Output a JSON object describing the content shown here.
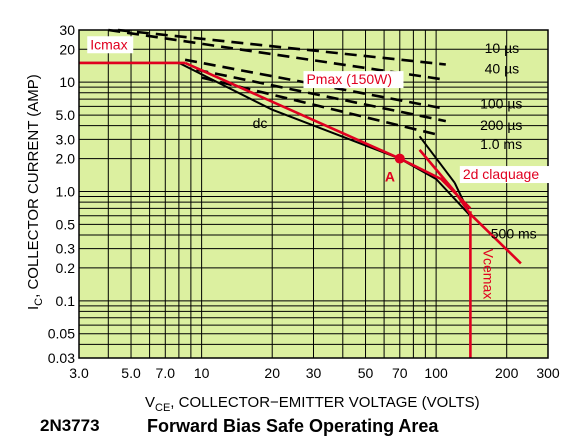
{
  "chart_data": {
    "type": "line",
    "title": "Forward Bias Safe Operating Area",
    "part_number": "2N3773",
    "xlabel": "V",
    "xlabel_sub": "CE",
    "xlabel_rest": ", COLLECTOR−EMITTER VOLTAGE (VOLTS)",
    "ylabel": "I",
    "ylabel_sub": "C",
    "ylabel_rest": ", COLLECTOR CURRENT (AMP)",
    "x_scale": "log",
    "y_scale": "log",
    "xlim": [
      3,
      300
    ],
    "ylim": [
      0.03,
      30
    ],
    "x_ticks": [
      3,
      5,
      7,
      10,
      20,
      30,
      50,
      70,
      100,
      200,
      300
    ],
    "x_tick_labels": [
      "3.0",
      "5.0",
      "7.0",
      "10",
      "20",
      "30",
      "50",
      "70",
      "100",
      "200",
      "300"
    ],
    "y_ticks": [
      30,
      20,
      10,
      5,
      3,
      2,
      1,
      0.5,
      0.3,
      0.2,
      0.1,
      0.05,
      0.03
    ],
    "y_tick_labels": [
      "30",
      "20",
      "10",
      "5.0",
      "3.0",
      "2.0",
      "1.0",
      "0.5",
      "0.3",
      "0.2",
      "0.1",
      "0.05",
      "0.03"
    ],
    "grid": true,
    "plot_background": "#dcf0a0",
    "series": [
      {
        "name": "10 µs",
        "style": "dashed",
        "color": "#000000",
        "points": [
          [
            4.4,
            30
          ],
          [
            110,
            14.5
          ]
        ]
      },
      {
        "name": "40 µs",
        "style": "dashed",
        "color": "#000000",
        "points": [
          [
            4.0,
            30
          ],
          [
            110,
            10.5
          ]
        ]
      },
      {
        "name": "100 µs",
        "style": "dashed",
        "color": "#000000",
        "points": [
          [
            8.5,
            16
          ],
          [
            110,
            5.7
          ]
        ]
      },
      {
        "name": "200 µs",
        "style": "dashed",
        "color": "#000000",
        "points": [
          [
            9.5,
            13
          ],
          [
            110,
            4.4
          ]
        ]
      },
      {
        "name": "1.0 ms",
        "style": "dashed",
        "color": "#000000",
        "points": [
          [
            10,
            11
          ],
          [
            102,
            3.3
          ]
        ]
      },
      {
        "name": "dc",
        "style": "solid",
        "color": "#000000",
        "points": [
          [
            3,
            15
          ],
          [
            8,
            15
          ],
          [
            20,
            5.6
          ],
          [
            70,
            2.0
          ],
          [
            100,
            1.3
          ],
          [
            140,
            0.6
          ]
        ]
      },
      {
        "name": "500 ms",
        "style": "solid",
        "color": "#000000",
        "points": [
          [
            120,
            1.2
          ],
          [
            140,
            0.6
          ]
        ]
      },
      {
        "name": "",
        "style": "solid",
        "color": "#000000",
        "points": [
          [
            85,
            3.2
          ],
          [
            120,
            1.2
          ]
        ]
      },
      {
        "name": "Icmax",
        "style": "solid",
        "color": "#e00020",
        "points": [
          [
            3,
            15
          ],
          [
            8.5,
            15
          ]
        ]
      },
      {
        "name": "Pmax (150W)",
        "style": "solid",
        "color": "#e00020",
        "points": [
          [
            8.5,
            15
          ],
          [
            70,
            2.0
          ],
          [
            105,
            1.3
          ],
          [
            140,
            0.7
          ]
        ]
      },
      {
        "name": "2d claquage",
        "style": "solid",
        "color": "#e00020",
        "points": [
          [
            85,
            2.4
          ],
          [
            120,
            1.0
          ],
          [
            140,
            0.62
          ],
          [
            230,
            0.22
          ]
        ]
      },
      {
        "name": "Vcemax",
        "style": "solid",
        "color": "#e00020",
        "points": [
          [
            140,
            0.66
          ],
          [
            140,
            0.03
          ]
        ]
      }
    ],
    "marker": {
      "label": "A",
      "x": 70,
      "y": 2.0,
      "color": "#e00020"
    },
    "annotations": [
      {
        "text": "Icmax",
        "color": "#e00020"
      },
      {
        "text": "Pmax (150W)",
        "color": "#e00020"
      },
      {
        "text": "2d claquage",
        "color": "#e00020"
      },
      {
        "text": "Vcemax",
        "color": "#e00020"
      },
      {
        "text": "A",
        "color": "#e00020"
      },
      {
        "text": "dc",
        "color": "#000000"
      },
      {
        "text": "10 µs",
        "color": "#000000"
      },
      {
        "text": "40 µs",
        "color": "#000000"
      },
      {
        "text": "100 µs",
        "color": "#000000"
      },
      {
        "text": "200 µs",
        "color": "#000000"
      },
      {
        "text": "1.0 ms",
        "color": "#000000"
      },
      {
        "text": "500 ms",
        "color": "#000000"
      }
    ]
  }
}
